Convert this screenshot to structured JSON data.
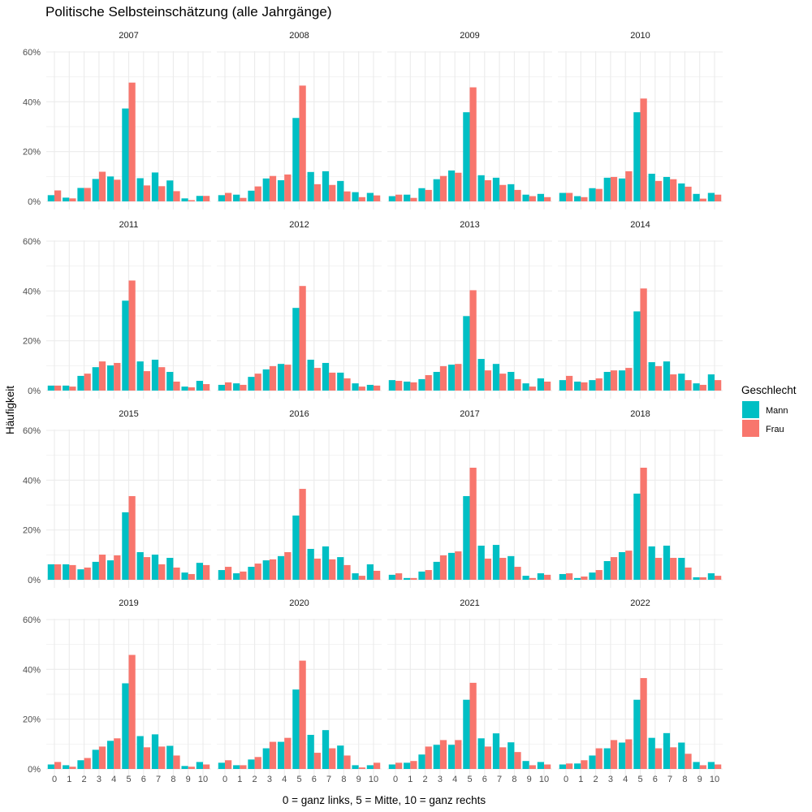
{
  "chart_data": {
    "type": "bar",
    "title": "Politische Selbsteinschätzung (alle Jahrgänge)",
    "xlabel": "0 = ganz links, 5 = Mitte, 10 = ganz rechts",
    "ylabel": "Häufigkeit",
    "ylim": [
      0,
      60
    ],
    "y_ticks": [
      "0%",
      "20%",
      "40%",
      "60%"
    ],
    "y_tick_values": [
      0,
      20,
      40,
      60
    ],
    "categories": [
      "0",
      "1",
      "2",
      "3",
      "4",
      "5",
      "6",
      "7",
      "8",
      "9",
      "10"
    ],
    "grid": true,
    "legend": {
      "title": "Geschlecht",
      "placement": "right",
      "entries": [
        {
          "name": "Mann",
          "color": "#00BFC4"
        },
        {
          "name": "Frau",
          "color": "#F8766D"
        }
      ]
    },
    "facets": [
      {
        "label": "2007",
        "series": [
          {
            "name": "Mann",
            "values": [
              2.5,
              1.5,
              5.4,
              9.0,
              10.0,
              37.3,
              9.3,
              11.6,
              8.4,
              1.2,
              2.2
            ]
          },
          {
            "name": "Frau",
            "values": [
              4.4,
              1.2,
              5.4,
              11.9,
              8.7,
              47.7,
              6.4,
              6.1,
              4.1,
              0.5,
              2.2
            ]
          }
        ]
      },
      {
        "label": "2008",
        "series": [
          {
            "name": "Mann",
            "values": [
              2.5,
              2.7,
              4.3,
              9.2,
              8.5,
              33.5,
              11.8,
              12.1,
              8.2,
              3.7,
              3.4
            ]
          },
          {
            "name": "Frau",
            "values": [
              3.4,
              1.4,
              6.0,
              10.2,
              10.8,
              46.5,
              6.9,
              6.6,
              4.0,
              1.7,
              2.4
            ]
          }
        ]
      },
      {
        "label": "2009",
        "series": [
          {
            "name": "Mann",
            "values": [
              2.1,
              2.7,
              5.3,
              8.9,
              12.4,
              35.8,
              10.5,
              9.5,
              6.9,
              2.7,
              3.0
            ]
          },
          {
            "name": "Frau",
            "values": [
              2.7,
              1.4,
              4.6,
              10.2,
              11.5,
              45.8,
              8.5,
              6.6,
              4.6,
              2.1,
              1.7
            ]
          }
        ]
      },
      {
        "label": "2010",
        "series": [
          {
            "name": "Mann",
            "values": [
              3.4,
              2.1,
              5.3,
              9.5,
              9.2,
              35.8,
              11.1,
              9.8,
              7.2,
              3.0,
              3.4
            ]
          },
          {
            "name": "Frau",
            "values": [
              3.4,
              1.7,
              5.0,
              9.8,
              12.1,
              41.3,
              8.2,
              8.9,
              5.9,
              1.1,
              2.7
            ]
          }
        ]
      },
      {
        "label": "2011",
        "series": [
          {
            "name": "Mann",
            "values": [
              2.0,
              2.0,
              5.9,
              9.4,
              10.1,
              36.1,
              11.7,
              12.4,
              7.5,
              1.6,
              3.9
            ]
          },
          {
            "name": "Frau",
            "values": [
              2.0,
              1.6,
              6.8,
              11.7,
              11.1,
              44.2,
              7.8,
              9.4,
              3.6,
              1.3,
              2.6
            ]
          }
        ]
      },
      {
        "label": "2012",
        "series": [
          {
            "name": "Mann",
            "values": [
              2.3,
              2.9,
              5.5,
              8.5,
              10.7,
              33.2,
              12.4,
              11.1,
              7.2,
              2.9,
              2.3
            ]
          },
          {
            "name": "Frau",
            "values": [
              3.3,
              2.3,
              6.8,
              9.8,
              10.4,
              42.0,
              9.1,
              7.2,
              4.9,
              1.6,
              2.0
            ]
          }
        ]
      },
      {
        "label": "2013",
        "series": [
          {
            "name": "Mann",
            "values": [
              4.2,
              3.6,
              4.6,
              7.5,
              10.4,
              29.9,
              12.7,
              10.7,
              7.5,
              2.9,
              4.9
            ]
          },
          {
            "name": "Frau",
            "values": [
              3.9,
              3.3,
              6.2,
              9.8,
              10.7,
              40.3,
              8.1,
              6.8,
              4.6,
              1.6,
              3.6
            ]
          }
        ]
      },
      {
        "label": "2014",
        "series": [
          {
            "name": "Mann",
            "values": [
              4.2,
              3.6,
              4.2,
              7.5,
              8.1,
              31.8,
              11.4,
              11.7,
              6.8,
              2.9,
              6.5
            ]
          },
          {
            "name": "Frau",
            "values": [
              5.9,
              3.3,
              4.9,
              8.1,
              9.1,
              41.0,
              9.8,
              6.5,
              4.2,
              2.3,
              4.2
            ]
          }
        ]
      },
      {
        "label": "2015",
        "series": [
          {
            "name": "Mann",
            "values": [
              6.2,
              6.2,
              4.2,
              7.2,
              7.8,
              27.1,
              11.1,
              10.1,
              8.8,
              2.9,
              6.8
            ]
          },
          {
            "name": "Frau",
            "values": [
              6.2,
              5.9,
              4.9,
              10.1,
              9.8,
              33.6,
              9.1,
              6.2,
              4.9,
              2.3,
              5.9
            ]
          }
        ]
      },
      {
        "label": "2016",
        "series": [
          {
            "name": "Mann",
            "values": [
              3.9,
              2.6,
              5.2,
              7.8,
              9.5,
              25.8,
              12.4,
              13.4,
              9.1,
              2.6,
              6.2
            ]
          },
          {
            "name": "Frau",
            "values": [
              5.2,
              3.3,
              6.5,
              8.2,
              11.1,
              36.5,
              8.5,
              8.2,
              5.9,
              1.6,
              3.6
            ]
          }
        ]
      },
      {
        "label": "2017",
        "series": [
          {
            "name": "Mann",
            "values": [
              2.0,
              0.7,
              3.3,
              7.2,
              10.8,
              33.6,
              13.7,
              14.0,
              9.5,
              1.6,
              2.6
            ]
          },
          {
            "name": "Frau",
            "values": [
              2.6,
              0.7,
              3.9,
              9.8,
              11.4,
              45.0,
              8.5,
              8.8,
              5.2,
              0.7,
              2.0
            ]
          }
        ]
      },
      {
        "label": "2018",
        "series": [
          {
            "name": "Mann",
            "values": [
              2.3,
              0.7,
              2.9,
              7.5,
              11.1,
              34.6,
              13.4,
              13.7,
              8.8,
              1.0,
              2.6
            ]
          },
          {
            "name": "Frau",
            "values": [
              2.6,
              1.3,
              3.9,
              9.1,
              11.7,
              45.0,
              8.8,
              8.8,
              4.9,
              1.0,
              1.6
            ]
          }
        ]
      },
      {
        "label": "2019",
        "series": [
          {
            "name": "Mann",
            "values": [
              1.8,
              1.5,
              3.5,
              7.7,
              11.3,
              34.4,
              13.2,
              13.9,
              9.3,
              1.2,
              2.8
            ]
          },
          {
            "name": "Frau",
            "values": [
              2.8,
              0.9,
              4.4,
              9.0,
              12.3,
              45.8,
              8.7,
              9.0,
              5.4,
              0.9,
              1.8
            ]
          }
        ]
      },
      {
        "label": "2020",
        "series": [
          {
            "name": "Mann",
            "values": [
              2.5,
              1.5,
              3.8,
              8.3,
              10.9,
              31.9,
              13.7,
              15.6,
              9.4,
              1.5,
              1.5
            ]
          },
          {
            "name": "Frau",
            "values": [
              3.5,
              1.5,
              4.8,
              10.9,
              12.5,
              43.5,
              6.5,
              8.3,
              5.4,
              0.6,
              2.5
            ]
          }
        ]
      },
      {
        "label": "2021",
        "series": [
          {
            "name": "Mann",
            "values": [
              1.8,
              2.5,
              5.8,
              9.7,
              9.7,
              27.8,
              12.3,
              14.3,
              10.7,
              3.2,
              2.8
            ]
          },
          {
            "name": "Frau",
            "values": [
              2.5,
              3.2,
              9.0,
              11.6,
              11.6,
              34.6,
              9.0,
              8.7,
              6.8,
              1.5,
              1.8
            ]
          }
        ]
      },
      {
        "label": "2022",
        "series": [
          {
            "name": "Mann",
            "values": [
              1.8,
              2.2,
              5.4,
              8.3,
              10.6,
              27.8,
              12.5,
              14.4,
              10.6,
              2.8,
              2.8
            ]
          },
          {
            "name": "Frau",
            "values": [
              2.2,
              3.5,
              8.3,
              11.6,
              11.9,
              36.5,
              8.3,
              8.7,
              6.1,
              1.5,
              1.8
            ]
          }
        ]
      }
    ]
  }
}
